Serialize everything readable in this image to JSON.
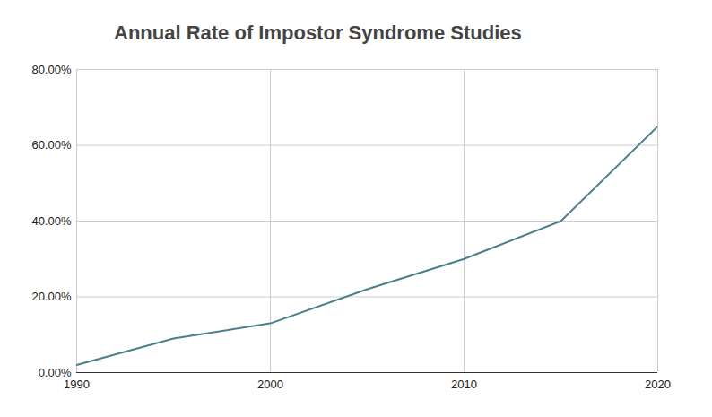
{
  "chart_data": {
    "type": "line",
    "title": "Annual Rate of Impostor Syndrome Studies",
    "x": [
      1990,
      1995,
      2000,
      2005,
      2010,
      2015,
      2020
    ],
    "values": [
      2,
      9,
      13,
      22,
      30,
      40,
      65
    ],
    "color": "#4a7f8c",
    "xlim": [
      1990,
      2020
    ],
    "xticks": [
      1990,
      2000,
      2010,
      2020
    ],
    "ylim": [
      0,
      80
    ],
    "yticks": [
      {
        "value": 0,
        "label": "0.00%"
      },
      {
        "value": 20,
        "label": "20.00%"
      },
      {
        "value": 40,
        "label": "40.00%"
      },
      {
        "value": 60,
        "label": "60.00%"
      },
      {
        "value": 80,
        "label": "80.00%"
      }
    ],
    "grid": true
  }
}
